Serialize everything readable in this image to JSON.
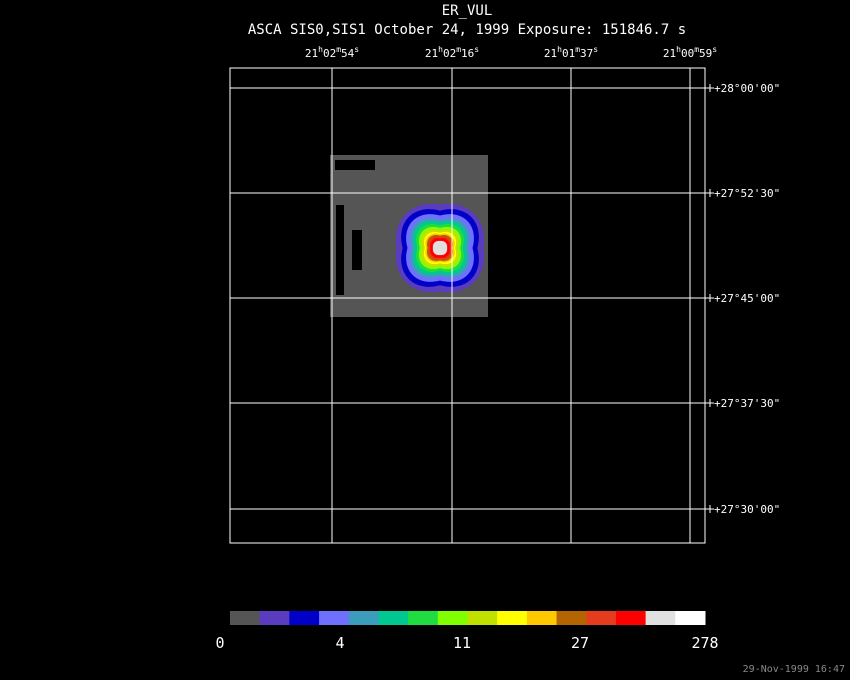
{
  "header": {
    "title": "ER_VUL",
    "subtitle": "ASCA SIS0,SIS1 October 24, 1999 Exposure: 151846.7 s"
  },
  "ra_labels": [
    [
      "21",
      "h",
      "02",
      "m",
      "54",
      "s"
    ],
    [
      "21",
      "h",
      "02",
      "m",
      "16",
      "s"
    ],
    [
      "21",
      "h",
      "01",
      "m",
      "37",
      "s"
    ],
    [
      "21",
      "h",
      "00",
      "m",
      "59",
      "s"
    ]
  ],
  "dec_labels": [
    "+28°00'00\"",
    "+27°52'30\"",
    "+27°45'00\"",
    "+27°37'30\"",
    "+27°30'00\""
  ],
  "colorbar": {
    "colors": [
      "#555555",
      "#5a3cbe",
      "#0000c8",
      "#7070ff",
      "#3c9cbc",
      "#00c890",
      "#20dc40",
      "#80ff00",
      "#c0e000",
      "#ffff00",
      "#ffc800",
      "#b46400",
      "#e63c1e",
      "#ff0000",
      "#e0e0e0",
      "#ffffff"
    ],
    "ticks": [
      0,
      4,
      11,
      27,
      278
    ]
  },
  "timestamp": "29-Nov-1999 16:47"
}
